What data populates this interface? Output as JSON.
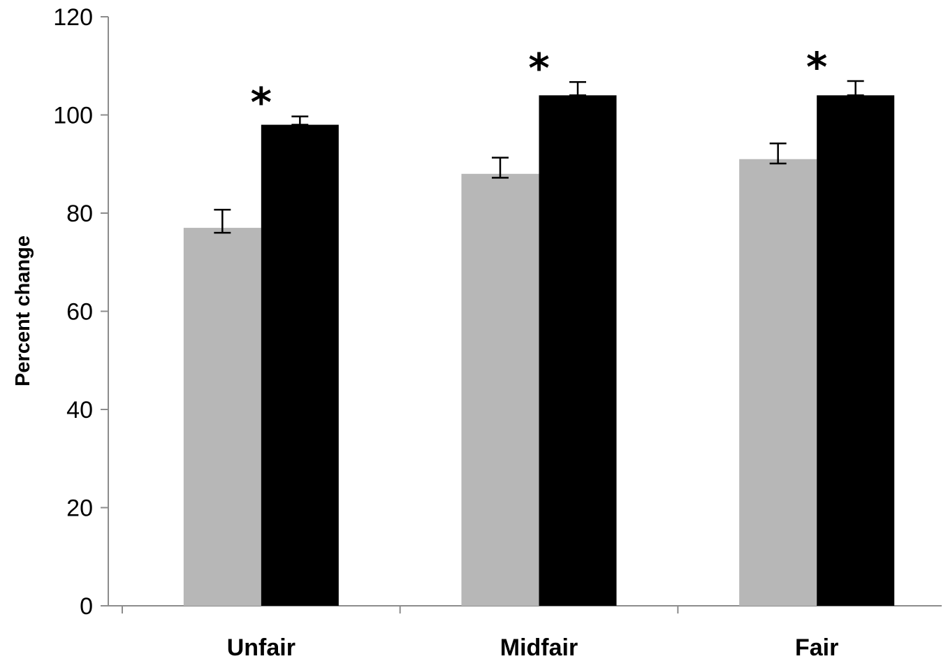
{
  "chart_data": {
    "type": "bar",
    "title": "",
    "xlabel": "",
    "ylabel": "Percent change",
    "ylim": [
      0,
      120
    ],
    "yticks": [
      0,
      20,
      40,
      60,
      80,
      100,
      120
    ],
    "categories": [
      "Unfair",
      "Midfair",
      "Fair"
    ],
    "grid": false,
    "legend": "none",
    "series": [
      {
        "color": "#b7b7b7",
        "values": [
          77,
          88,
          91
        ],
        "error_high": [
          80.7,
          91.3,
          94.2
        ],
        "error_low": [
          76,
          87.2,
          90.1
        ]
      },
      {
        "color": "#000000",
        "values": [
          98,
          104,
          104
        ],
        "error_high": [
          99.7,
          106.7,
          106.9
        ],
        "error_low": [
          98,
          104,
          104
        ]
      }
    ],
    "annotations": [
      {
        "text": "*",
        "category": "Unfair",
        "series_index": 1
      },
      {
        "text": "*",
        "category": "Midfair",
        "series_index": 1
      },
      {
        "text": "*",
        "category": "Fair",
        "series_index": 1
      }
    ]
  }
}
